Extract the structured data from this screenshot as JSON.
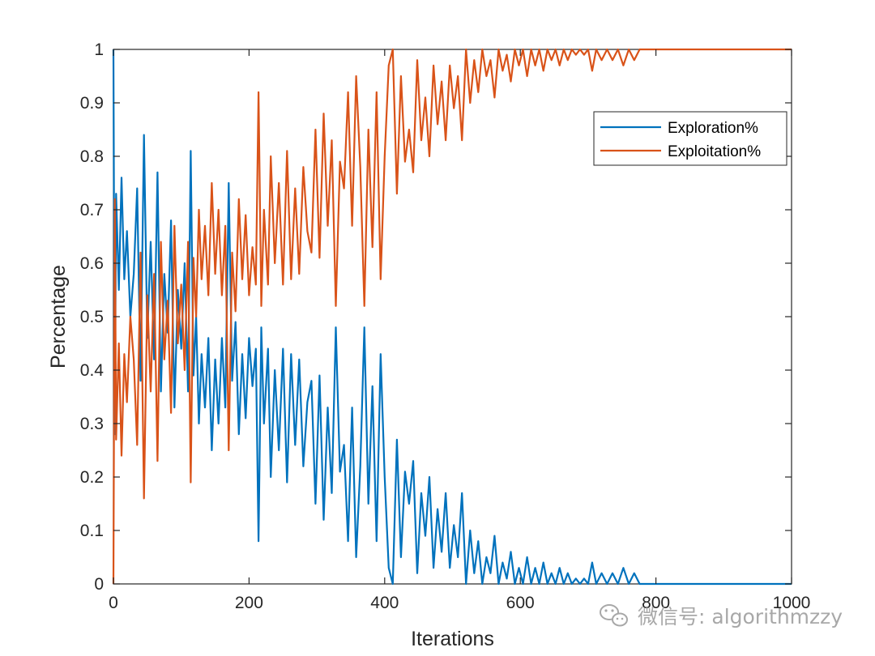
{
  "chart_data": {
    "type": "line",
    "xlabel": "Iterations",
    "ylabel": "Percentage",
    "xlim": [
      0,
      1000
    ],
    "ylim": [
      0,
      1
    ],
    "x_ticks": [
      0,
      200,
      400,
      600,
      800,
      1000
    ],
    "y_ticks": [
      0,
      0.1,
      0.2,
      0.3,
      0.4,
      0.5,
      0.6,
      0.7,
      0.8,
      0.9,
      1
    ],
    "grid": false,
    "legend_position": "top-right",
    "series": [
      {
        "name": "Exploration%",
        "color": "#0072BD",
        "points": [
          [
            0,
            1
          ],
          [
            2,
            0.28
          ],
          [
            4,
            0.73
          ],
          [
            8,
            0.55
          ],
          [
            12,
            0.76
          ],
          [
            16,
            0.57
          ],
          [
            20,
            0.66
          ],
          [
            25,
            0.5
          ],
          [
            30,
            0.58
          ],
          [
            35,
            0.74
          ],
          [
            40,
            0.38
          ],
          [
            45,
            0.84
          ],
          [
            50,
            0.46
          ],
          [
            55,
            0.64
          ],
          [
            60,
            0.42
          ],
          [
            65,
            0.77
          ],
          [
            70,
            0.36
          ],
          [
            75,
            0.58
          ],
          [
            80,
            0.47
          ],
          [
            85,
            0.68
          ],
          [
            90,
            0.33
          ],
          [
            95,
            0.55
          ],
          [
            100,
            0.44
          ],
          [
            105,
            0.6
          ],
          [
            110,
            0.36
          ],
          [
            114,
            0.81
          ],
          [
            118,
            0.39
          ],
          [
            122,
            0.5
          ],
          [
            126,
            0.3
          ],
          [
            130,
            0.43
          ],
          [
            135,
            0.33
          ],
          [
            140,
            0.46
          ],
          [
            145,
            0.25
          ],
          [
            150,
            0.42
          ],
          [
            155,
            0.3
          ],
          [
            160,
            0.46
          ],
          [
            165,
            0.33
          ],
          [
            170,
            0.75
          ],
          [
            175,
            0.38
          ],
          [
            180,
            0.49
          ],
          [
            185,
            0.28
          ],
          [
            190,
            0.43
          ],
          [
            195,
            0.31
          ],
          [
            200,
            0.46
          ],
          [
            205,
            0.37
          ],
          [
            210,
            0.44
          ],
          [
            214,
            0.08
          ],
          [
            218,
            0.48
          ],
          [
            222,
            0.3
          ],
          [
            228,
            0.44
          ],
          [
            232,
            0.2
          ],
          [
            238,
            0.4
          ],
          [
            244,
            0.25
          ],
          [
            250,
            0.44
          ],
          [
            256,
            0.19
          ],
          [
            262,
            0.43
          ],
          [
            268,
            0.26
          ],
          [
            274,
            0.42
          ],
          [
            280,
            0.22
          ],
          [
            286,
            0.34
          ],
          [
            292,
            0.38
          ],
          [
            298,
            0.15
          ],
          [
            304,
            0.39
          ],
          [
            310,
            0.12
          ],
          [
            316,
            0.33
          ],
          [
            322,
            0.17
          ],
          [
            328,
            0.48
          ],
          [
            334,
            0.21
          ],
          [
            340,
            0.26
          ],
          [
            346,
            0.08
          ],
          [
            352,
            0.33
          ],
          [
            358,
            0.05
          ],
          [
            364,
            0.22
          ],
          [
            370,
            0.48
          ],
          [
            376,
            0.15
          ],
          [
            382,
            0.37
          ],
          [
            388,
            0.08
          ],
          [
            394,
            0.43
          ],
          [
            400,
            0.2
          ],
          [
            406,
            0.03
          ],
          [
            412,
            0
          ],
          [
            418,
            0.27
          ],
          [
            424,
            0.05
          ],
          [
            430,
            0.21
          ],
          [
            436,
            0.15
          ],
          [
            442,
            0.23
          ],
          [
            448,
            0.02
          ],
          [
            454,
            0.17
          ],
          [
            460,
            0.09
          ],
          [
            466,
            0.2
          ],
          [
            472,
            0.03
          ],
          [
            478,
            0.14
          ],
          [
            484,
            0.06
          ],
          [
            490,
            0.17
          ],
          [
            496,
            0.03
          ],
          [
            502,
            0.11
          ],
          [
            508,
            0.05
          ],
          [
            514,
            0.17
          ],
          [
            520,
            0
          ],
          [
            526,
            0.1
          ],
          [
            532,
            0.02
          ],
          [
            538,
            0.08
          ],
          [
            544,
            0
          ],
          [
            550,
            0.05
          ],
          [
            556,
            0.02
          ],
          [
            562,
            0.09
          ],
          [
            568,
            0
          ],
          [
            574,
            0.04
          ],
          [
            580,
            0.01
          ],
          [
            586,
            0.06
          ],
          [
            592,
            0
          ],
          [
            598,
            0.03
          ],
          [
            604,
            0
          ],
          [
            610,
            0.05
          ],
          [
            616,
            0
          ],
          [
            622,
            0.03
          ],
          [
            628,
            0
          ],
          [
            634,
            0.04
          ],
          [
            640,
            0
          ],
          [
            646,
            0.02
          ],
          [
            652,
            0
          ],
          [
            658,
            0.03
          ],
          [
            664,
            0
          ],
          [
            670,
            0.02
          ],
          [
            676,
            0
          ],
          [
            682,
            0.01
          ],
          [
            688,
            0
          ],
          [
            694,
            0.01
          ],
          [
            700,
            0
          ],
          [
            706,
            0.04
          ],
          [
            712,
            0
          ],
          [
            720,
            0.02
          ],
          [
            728,
            0
          ],
          [
            736,
            0.02
          ],
          [
            744,
            0
          ],
          [
            752,
            0.03
          ],
          [
            760,
            0
          ],
          [
            768,
            0.02
          ],
          [
            776,
            0
          ],
          [
            800,
            0
          ],
          [
            900,
            0
          ],
          [
            1000,
            0
          ]
        ]
      },
      {
        "name": "Exploitation%",
        "color": "#D95319",
        "points": [
          [
            0,
            0
          ],
          [
            2,
            0.72
          ],
          [
            4,
            0.27
          ],
          [
            8,
            0.45
          ],
          [
            12,
            0.24
          ],
          [
            16,
            0.43
          ],
          [
            20,
            0.34
          ],
          [
            25,
            0.5
          ],
          [
            30,
            0.42
          ],
          [
            35,
            0.26
          ],
          [
            40,
            0.62
          ],
          [
            45,
            0.16
          ],
          [
            50,
            0.54
          ],
          [
            55,
            0.36
          ],
          [
            60,
            0.58
          ],
          [
            65,
            0.23
          ],
          [
            70,
            0.64
          ],
          [
            75,
            0.42
          ],
          [
            80,
            0.53
          ],
          [
            85,
            0.32
          ],
          [
            90,
            0.67
          ],
          [
            95,
            0.45
          ],
          [
            100,
            0.56
          ],
          [
            105,
            0.4
          ],
          [
            110,
            0.64
          ],
          [
            114,
            0.19
          ],
          [
            118,
            0.61
          ],
          [
            122,
            0.5
          ],
          [
            126,
            0.7
          ],
          [
            130,
            0.57
          ],
          [
            135,
            0.67
          ],
          [
            140,
            0.54
          ],
          [
            145,
            0.75
          ],
          [
            150,
            0.58
          ],
          [
            155,
            0.7
          ],
          [
            160,
            0.54
          ],
          [
            165,
            0.67
          ],
          [
            170,
            0.25
          ],
          [
            175,
            0.62
          ],
          [
            180,
            0.51
          ],
          [
            185,
            0.72
          ],
          [
            190,
            0.57
          ],
          [
            195,
            0.69
          ],
          [
            200,
            0.54
          ],
          [
            205,
            0.63
          ],
          [
            210,
            0.56
          ],
          [
            214,
            0.92
          ],
          [
            218,
            0.52
          ],
          [
            222,
            0.7
          ],
          [
            228,
            0.56
          ],
          [
            232,
            0.8
          ],
          [
            238,
            0.6
          ],
          [
            244,
            0.75
          ],
          [
            250,
            0.56
          ],
          [
            256,
            0.81
          ],
          [
            262,
            0.57
          ],
          [
            268,
            0.74
          ],
          [
            274,
            0.58
          ],
          [
            280,
            0.78
          ],
          [
            286,
            0.66
          ],
          [
            292,
            0.62
          ],
          [
            298,
            0.85
          ],
          [
            304,
            0.61
          ],
          [
            310,
            0.88
          ],
          [
            316,
            0.67
          ],
          [
            322,
            0.83
          ],
          [
            328,
            0.52
          ],
          [
            334,
            0.79
          ],
          [
            340,
            0.74
          ],
          [
            346,
            0.92
          ],
          [
            352,
            0.67
          ],
          [
            358,
            0.95
          ],
          [
            364,
            0.78
          ],
          [
            370,
            0.52
          ],
          [
            376,
            0.85
          ],
          [
            382,
            0.63
          ],
          [
            388,
            0.92
          ],
          [
            394,
            0.57
          ],
          [
            400,
            0.8
          ],
          [
            406,
            0.97
          ],
          [
            412,
            1
          ],
          [
            418,
            0.73
          ],
          [
            424,
            0.95
          ],
          [
            430,
            0.79
          ],
          [
            436,
            0.85
          ],
          [
            442,
            0.77
          ],
          [
            448,
            0.98
          ],
          [
            454,
            0.83
          ],
          [
            460,
            0.91
          ],
          [
            466,
            0.8
          ],
          [
            472,
            0.97
          ],
          [
            478,
            0.86
          ],
          [
            484,
            0.94
          ],
          [
            490,
            0.83
          ],
          [
            496,
            0.97
          ],
          [
            502,
            0.89
          ],
          [
            508,
            0.95
          ],
          [
            514,
            0.83
          ],
          [
            520,
            1
          ],
          [
            526,
            0.9
          ],
          [
            532,
            0.98
          ],
          [
            538,
            0.92
          ],
          [
            544,
            1
          ],
          [
            550,
            0.95
          ],
          [
            556,
            0.98
          ],
          [
            562,
            0.91
          ],
          [
            568,
            1
          ],
          [
            574,
            0.96
          ],
          [
            580,
            0.99
          ],
          [
            586,
            0.94
          ],
          [
            592,
            1
          ],
          [
            598,
            0.97
          ],
          [
            604,
            1
          ],
          [
            610,
            0.95
          ],
          [
            616,
            1
          ],
          [
            622,
            0.97
          ],
          [
            628,
            1
          ],
          [
            634,
            0.96
          ],
          [
            640,
            1
          ],
          [
            646,
            0.98
          ],
          [
            652,
            1
          ],
          [
            658,
            0.97
          ],
          [
            664,
            1
          ],
          [
            670,
            0.98
          ],
          [
            676,
            1
          ],
          [
            682,
            0.99
          ],
          [
            688,
            1
          ],
          [
            694,
            0.99
          ],
          [
            700,
            1
          ],
          [
            706,
            0.96
          ],
          [
            712,
            1
          ],
          [
            720,
            0.98
          ],
          [
            728,
            1
          ],
          [
            736,
            0.98
          ],
          [
            744,
            1
          ],
          [
            752,
            0.97
          ],
          [
            760,
            1
          ],
          [
            768,
            0.98
          ],
          [
            776,
            1
          ],
          [
            800,
            1
          ],
          [
            900,
            1
          ],
          [
            1000,
            1
          ]
        ]
      }
    ]
  },
  "watermark": {
    "icon": "wechat-icon",
    "text": "微信号: algorithmzzy"
  }
}
